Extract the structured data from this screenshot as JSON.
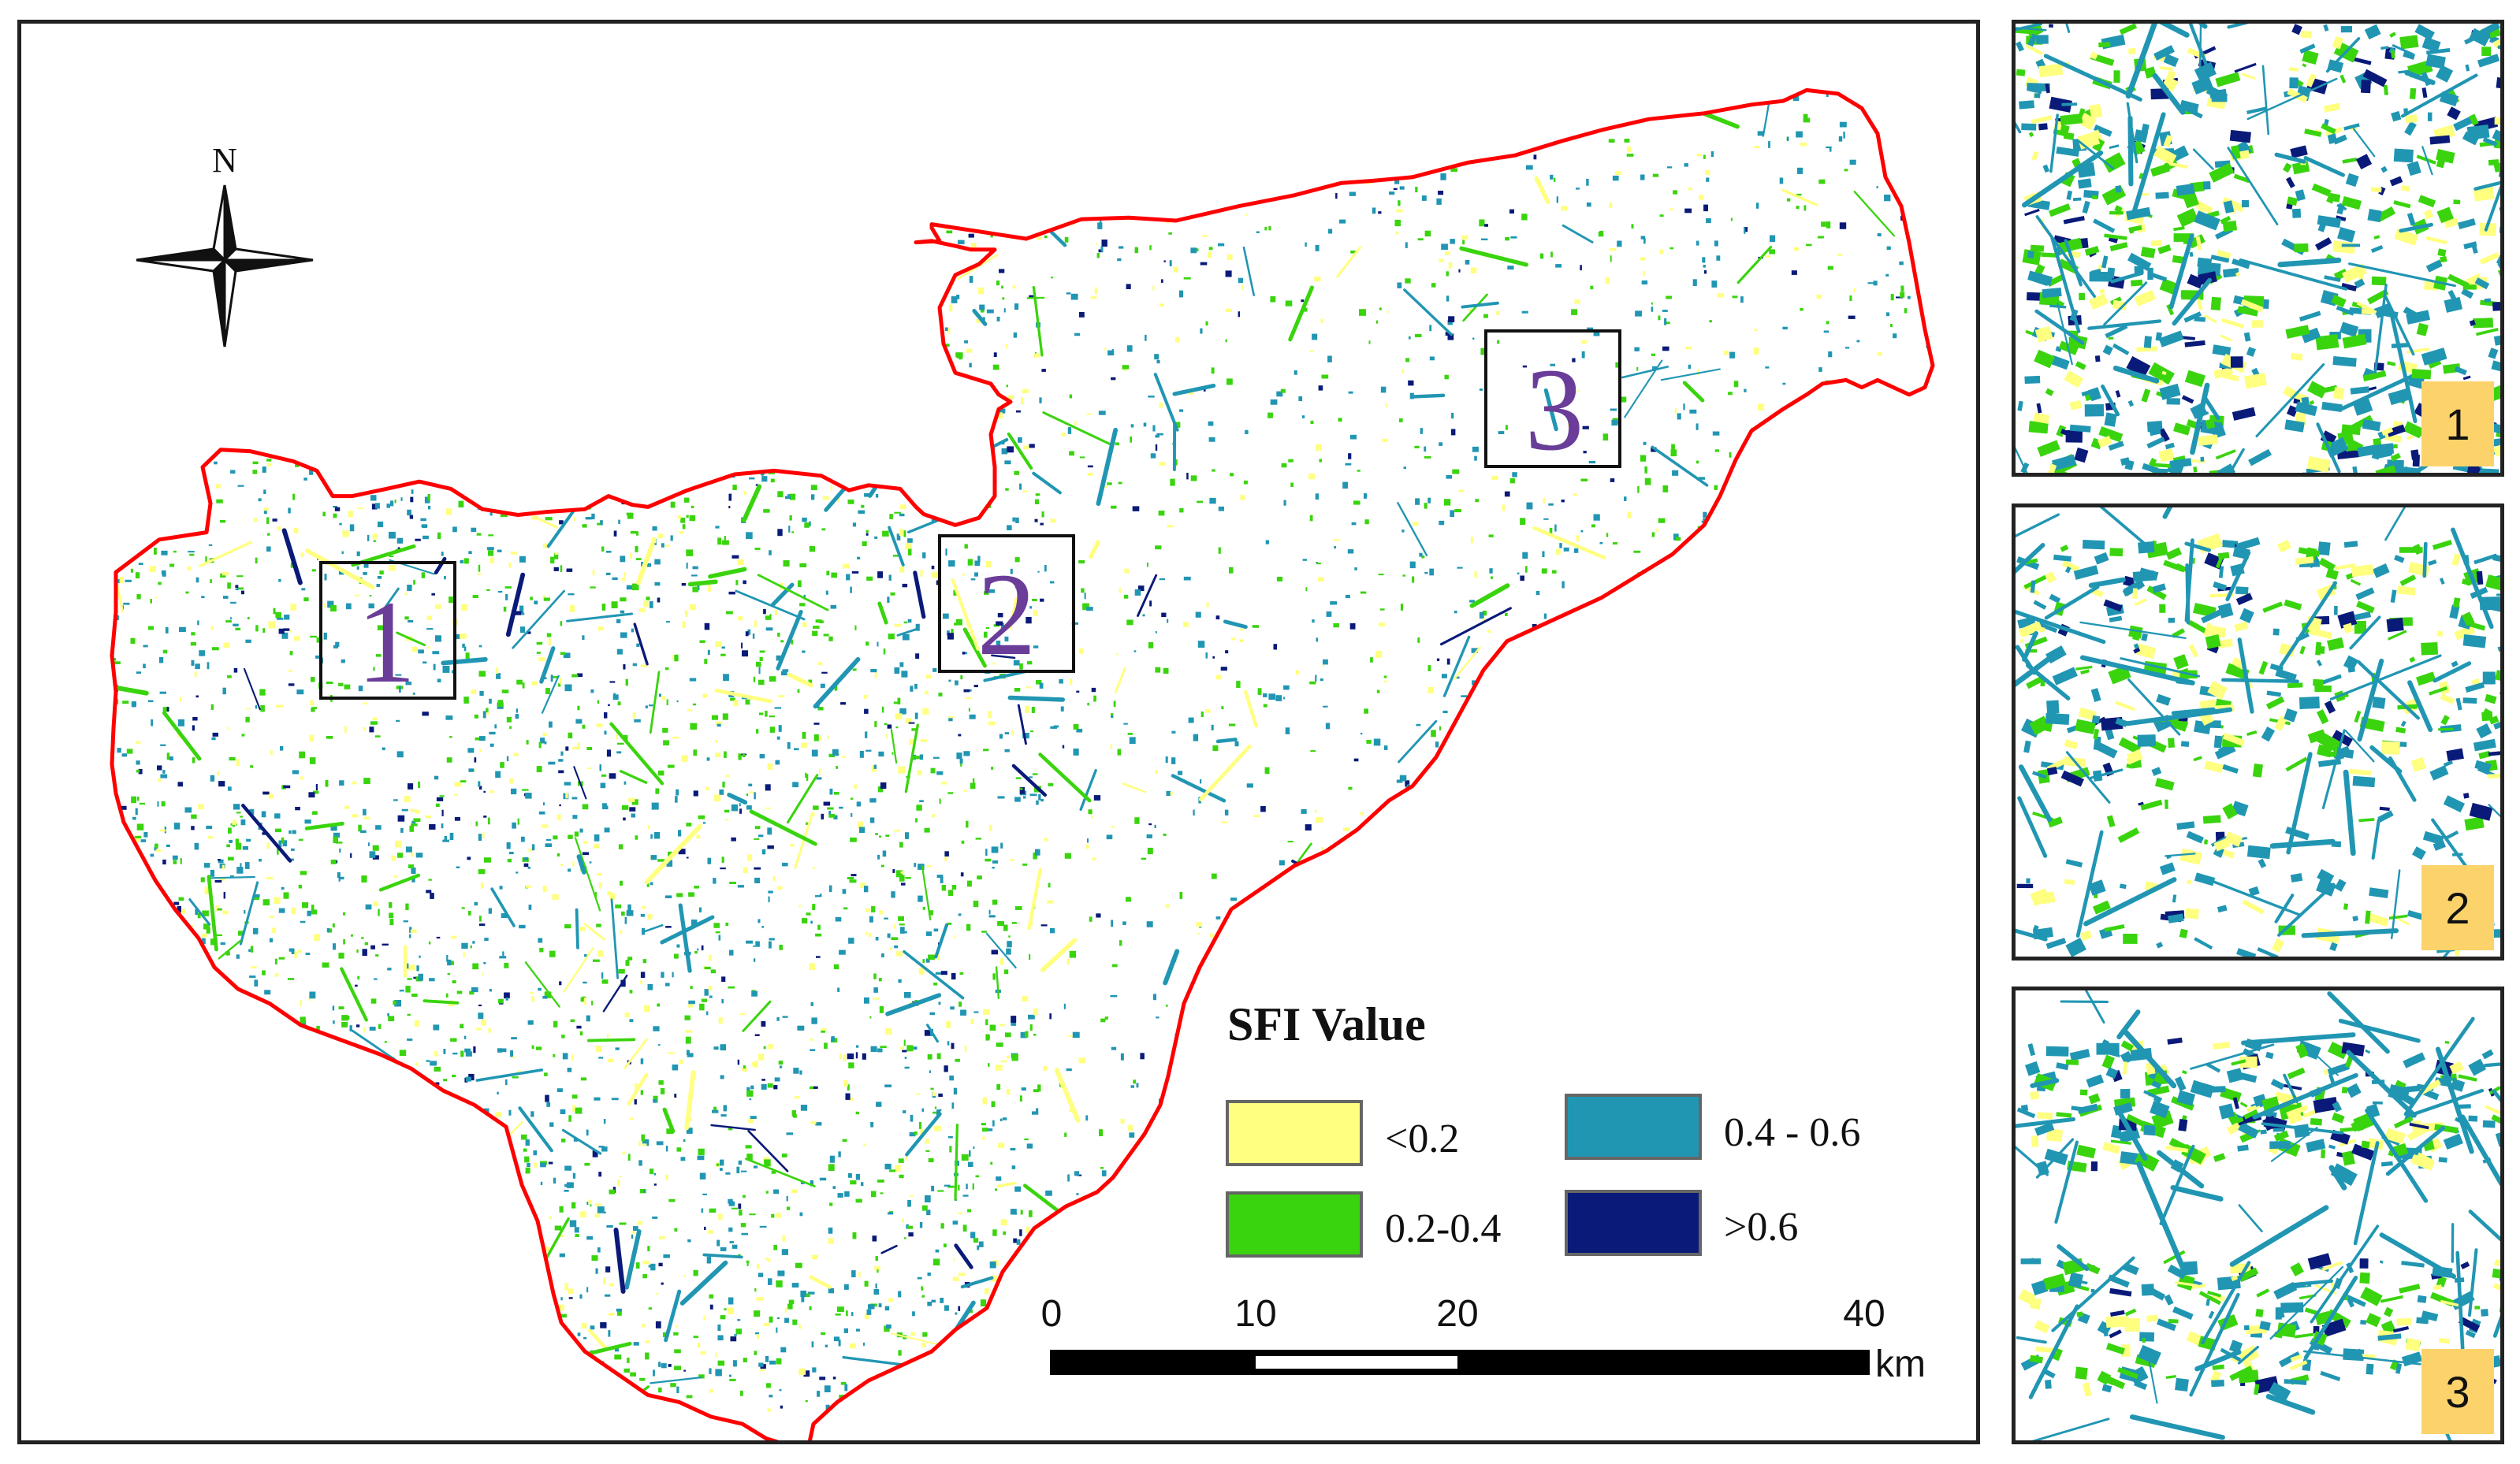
{
  "compass": {
    "north_label": "N"
  },
  "regions": [
    {
      "id": "1",
      "label": "1"
    },
    {
      "id": "2",
      "label": "2"
    },
    {
      "id": "3",
      "label": "3"
    }
  ],
  "legend": {
    "title": "SFI Value",
    "classes": [
      {
        "label": "<0.2",
        "color": "#ffff80"
      },
      {
        "label": "0.2-0.4",
        "color": "#3ad40e"
      },
      {
        "label": "0.4 - 0.6",
        "color": "#2196b3"
      },
      {
        "label": ">0.6",
        "color": "#0a1a78"
      }
    ]
  },
  "scale_bar": {
    "ticks": [
      "0",
      "10",
      "20",
      "40"
    ],
    "unit": "km"
  },
  "boundary_color": "#ff0000",
  "region_label_color": "#6a3d99",
  "insets": [
    {
      "label": "1"
    },
    {
      "label": "2"
    },
    {
      "label": "3"
    }
  ]
}
